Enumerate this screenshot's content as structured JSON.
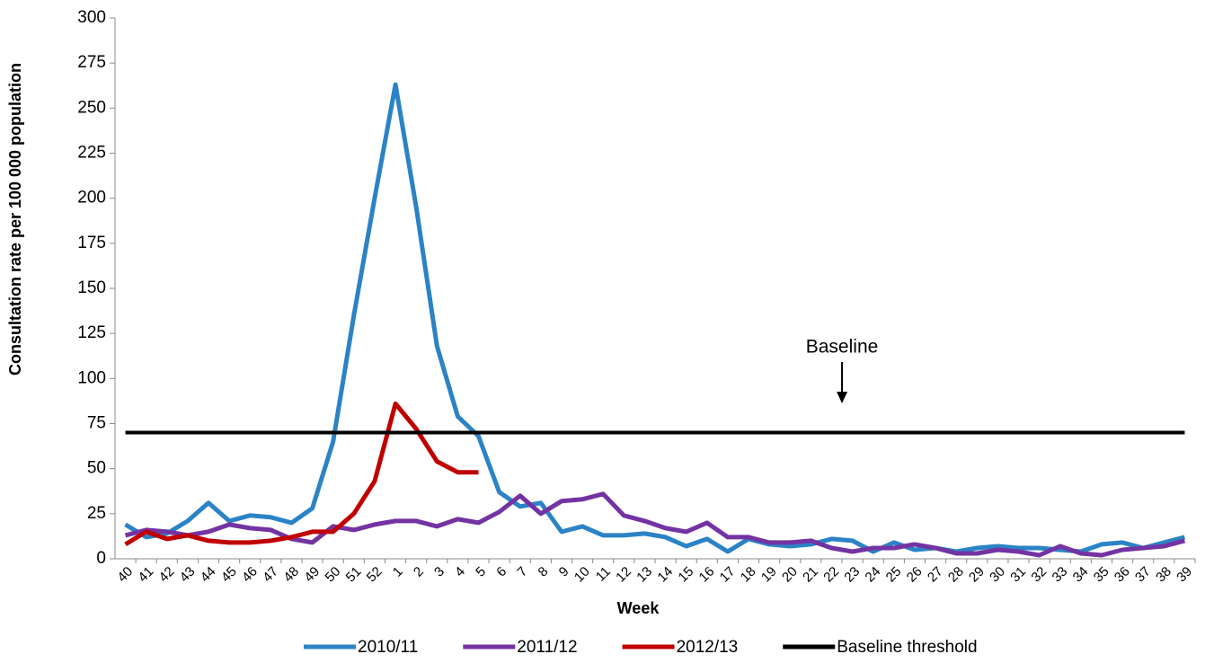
{
  "chart_data": {
    "type": "line",
    "y_label": "Consultation rate per 100 000 population",
    "x_label": "Week",
    "annotation": "Baseline",
    "categories": [
      "40",
      "41",
      "42",
      "43",
      "44",
      "45",
      "46",
      "47",
      "48",
      "49",
      "50",
      "51",
      "52",
      "1",
      "2",
      "3",
      "4",
      "5",
      "6",
      "7",
      "8",
      "9",
      "10",
      "11",
      "12",
      "13",
      "14",
      "15",
      "16",
      "17",
      "18",
      "19",
      "20",
      "21",
      "22",
      "23",
      "24",
      "25",
      "26",
      "27",
      "28",
      "29",
      "30",
      "31",
      "32",
      "33",
      "34",
      "35",
      "36",
      "37",
      "38",
      "39"
    ],
    "series": [
      {
        "name": "2010/11",
        "color": "#2b83c6",
        "values": [
          19,
          12,
          14,
          21,
          31,
          21,
          24,
          23,
          20,
          28,
          65,
          135,
          200,
          263,
          195,
          118,
          79,
          68,
          37,
          29,
          31,
          15,
          18,
          13,
          13,
          14,
          12,
          7,
          11,
          4,
          11,
          8,
          7,
          8,
          11,
          10,
          4,
          9,
          5,
          6,
          4,
          6,
          7,
          6,
          6,
          5,
          4,
          8,
          9,
          6,
          9,
          12
        ]
      },
      {
        "name": "2011/12",
        "color": "#7433a3",
        "values": [
          13,
          16,
          15,
          13,
          15,
          19,
          17,
          16,
          11,
          9,
          18,
          16,
          19,
          21,
          21,
          18,
          22,
          20,
          26,
          35,
          25,
          32,
          33,
          36,
          24,
          21,
          17,
          15,
          20,
          12,
          12,
          9,
          9,
          10,
          6,
          4,
          6,
          6,
          8,
          6,
          3,
          3,
          5,
          4,
          2,
          7,
          3,
          2,
          5,
          6,
          7,
          10
        ]
      },
      {
        "name": "2012/13",
        "color": "#c00000",
        "values": [
          8,
          15,
          11,
          13,
          10,
          9,
          9,
          10,
          12,
          15,
          15,
          25,
          43,
          86,
          72,
          54,
          48,
          48,
          null,
          null,
          null,
          null,
          null,
          null,
          null,
          null,
          null,
          null,
          null,
          null,
          null,
          null,
          null,
          null,
          null,
          null,
          null,
          null,
          null,
          null,
          null,
          null,
          null,
          null,
          null,
          null,
          null,
          null,
          null,
          null,
          null,
          null
        ]
      },
      {
        "name": "Baseline threshold",
        "color": "#000000",
        "value": 70
      }
    ],
    "annotation_at": "23",
    "ylim": [
      0,
      300
    ],
    "yticks": [
      0,
      25,
      50,
      75,
      100,
      125,
      150,
      175,
      200,
      225,
      250,
      275,
      300
    ],
    "grid": false
  }
}
